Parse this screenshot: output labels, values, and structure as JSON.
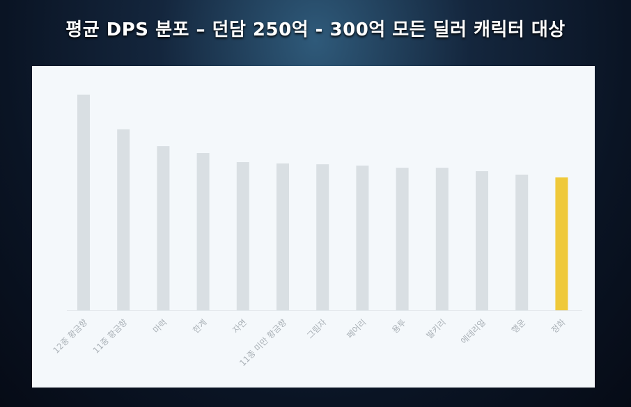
{
  "chart_data": {
    "type": "bar",
    "title": "평균 DPS 분포 – 던담 250억 - 300억 모든 딜러 캐릭터 대상",
    "categories": [
      "12종 황금향",
      "11종 황금향",
      "마력",
      "한계",
      "자연",
      "11종 미만 황금향",
      "그림자",
      "페어리",
      "용투",
      "발키리",
      "에테리얼",
      "행운",
      "정화"
    ],
    "values": [
      100,
      83.9,
      76.1,
      72.9,
      68.7,
      68.1,
      67.7,
      67.1,
      66.1,
      66.1,
      64.5,
      62.9,
      61.6
    ],
    "ylim": [
      0,
      100
    ],
    "xlabel": "",
    "ylabel": "",
    "grid": false,
    "colors": {
      "default": "#d9dfe3",
      "highlight": "#efc93a",
      "label": "#a9b0b6"
    },
    "highlight_index": 12
  }
}
